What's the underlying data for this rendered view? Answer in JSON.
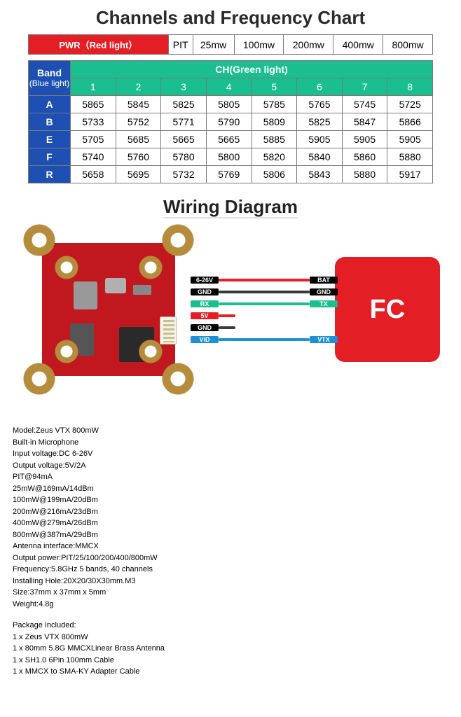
{
  "titles": {
    "freq": "Channels and Frequency Chart",
    "wiring": "Wiring Diagram"
  },
  "power_row": {
    "header": "PWR（Red light）",
    "levels": [
      "PIT",
      "25mw",
      "100mw",
      "200mw",
      "400mw",
      "800mw"
    ]
  },
  "channel_header": {
    "band_label_top": "Band",
    "band_label_sub": "(Blue light)",
    "ch_title": "CH(Green light)",
    "ch_numbers": [
      "1",
      "2",
      "3",
      "4",
      "5",
      "6",
      "7",
      "8"
    ]
  },
  "bands": [
    {
      "letter": "A",
      "freqs": [
        "5865",
        "5845",
        "5825",
        "5805",
        "5785",
        "5765",
        "5745",
        "5725"
      ]
    },
    {
      "letter": "B",
      "freqs": [
        "5733",
        "5752",
        "5771",
        "5790",
        "5809",
        "5825",
        "5847",
        "5866"
      ]
    },
    {
      "letter": "E",
      "freqs": [
        "5705",
        "5685",
        "5665",
        "5665",
        "5885",
        "5905",
        "5905",
        "5905"
      ]
    },
    {
      "letter": "F",
      "freqs": [
        "5740",
        "5760",
        "5780",
        "5800",
        "5820",
        "5840",
        "5860",
        "5880"
      ]
    },
    {
      "letter": "R",
      "freqs": [
        "5658",
        "5695",
        "5732",
        "5769",
        "5806",
        "5843",
        "5880",
        "5917"
      ]
    }
  ],
  "table_style": {
    "pwr_bg": "#e31e24",
    "band_bg": "#1e50b3",
    "ch_bg": "#1bbf8f",
    "border": "#787878",
    "cell_bg": "#ffffff"
  },
  "wiring": {
    "fc_label": "FC",
    "fc_bg": "#e31e24",
    "pcb_bg": "#c0181e",
    "wires": [
      {
        "left": "6-26V",
        "right": "BAT",
        "label_bg": "#000000",
        "line": "#e31e24"
      },
      {
        "left": "GND",
        "right": "GND",
        "label_bg": "#000000",
        "line": "#3a3a3a"
      },
      {
        "left": "RX",
        "right": "TX",
        "label_bg": "#1bbf8f",
        "line": "#1bbf8f"
      },
      {
        "left": "5V",
        "right": "",
        "label_bg": "#e31e24",
        "line": "#e31e24",
        "short": true
      },
      {
        "left": "GND",
        "right": "",
        "label_bg": "#000000",
        "line": "#3a3a3a",
        "short": true
      },
      {
        "left": "VID",
        "right": "VTX",
        "label_bg": "#1e90d4",
        "line": "#1e90d4"
      }
    ]
  },
  "specs": [
    "Model:Zeus VTX 800mW",
    "Built-in Microphone",
    "Input voltage:DC 6-26V",
    "Output voltage:5V/2A",
    "PIT@94mA",
    "25mW@169mA/14dBm",
    "100mW@199mA/20dBm",
    "200mW@216mA/23dBm",
    "400mW@279mA/26dBm",
    "800mW@387mA/29dBm",
    "Antenna interface:MMCX",
    "Output power:PIT/25/100/200/400/800mW",
    "Frequency:5.8GHz 5 bands, 40 channels",
    "Installing Hole:20X20/30X30mm.M3",
    "Size:37mm x 37mm x 5mm",
    "Weight:4.8g"
  ],
  "package_header": "Package Included:",
  "package": [
    "1 x Zeus VTX 800mW",
    "1 x 80mm 5.8G MMCXLinear Brass Antenna",
    "1 x SH1.0 6Pin 100mm Cable",
    "1 x MMCX to SMA-KY Adapter Cable"
  ]
}
